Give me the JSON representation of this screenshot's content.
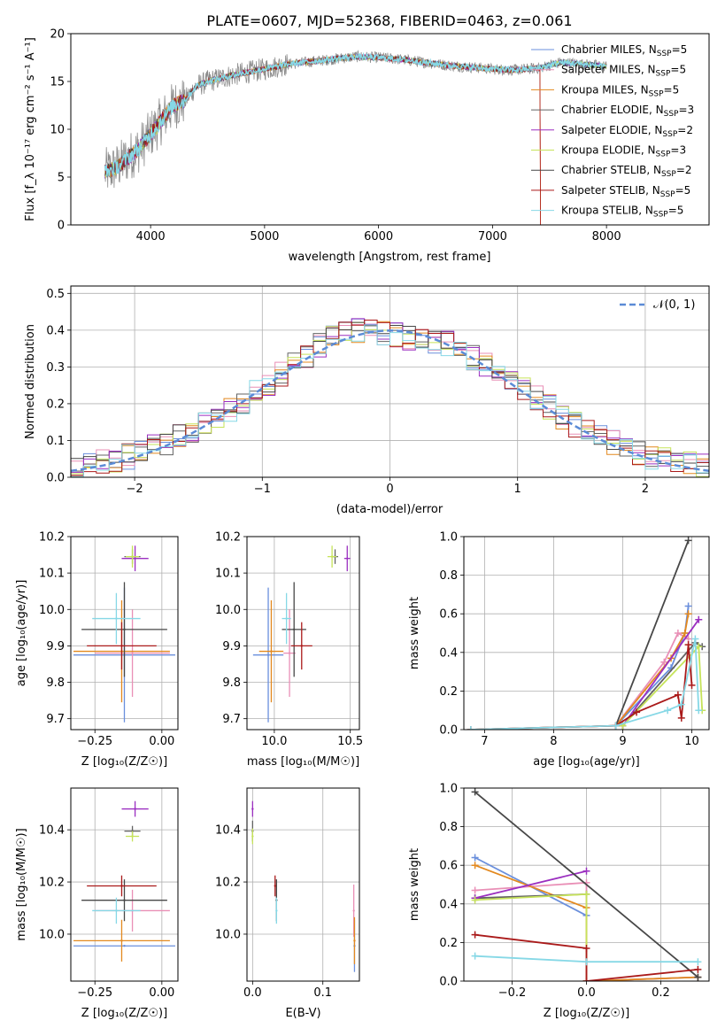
{
  "figure": {
    "title": "PLATE=0607, MJD=52368, FIBERID=0463, z=0.061"
  },
  "models": [
    {
      "imf": "Chabrier",
      "lib": "MILES",
      "n": "5",
      "color": "#6a8fdc"
    },
    {
      "imf": "Salpeter",
      "lib": "MILES",
      "n": "5",
      "color": "#e98fb6"
    },
    {
      "imf": "Kroupa",
      "lib": "MILES",
      "n": "5",
      "color": "#e3891f"
    },
    {
      "imf": "Chabrier",
      "lib": "ELODIE",
      "n": "3",
      "color": "#636363"
    },
    {
      "imf": "Salpeter",
      "lib": "ELODIE",
      "n": "2",
      "color": "#9b2fc0"
    },
    {
      "imf": "Kroupa",
      "lib": "ELODIE",
      "n": "3",
      "color": "#c6e35a"
    },
    {
      "imf": "Chabrier",
      "lib": "STELIB",
      "n": "2",
      "color": "#474747"
    },
    {
      "imf": "Salpeter",
      "lib": "STELIB",
      "n": "5",
      "color": "#aa1a1a"
    },
    {
      "imf": "Kroupa",
      "lib": "STELIB",
      "n": "5",
      "color": "#86d8e6"
    }
  ],
  "chart_data": [
    {
      "id": "spectrum",
      "type": "line",
      "xlabel": "wavelength [Angstrom, rest frame]",
      "ylabel": "Flux [f_λ 10⁻¹⁷ erg cm⁻² s⁻¹ A⁻¹]",
      "xlim": [
        3300,
        8900
      ],
      "ylim": [
        0,
        20
      ],
      "xticks": [
        4000,
        5000,
        6000,
        7000,
        8000
      ],
      "yticks": [
        0,
        5,
        10,
        15,
        20
      ],
      "legend": "right",
      "continuum": {
        "x": [
          3600,
          3700,
          3800,
          3900,
          4000,
          4100,
          4200,
          4300,
          4400,
          4500,
          4700,
          5000,
          5200,
          5500,
          5800,
          6000,
          6200,
          6400,
          6600,
          6800,
          7000,
          7200,
          7400,
          7600,
          7800,
          8000
        ],
        "y": [
          5.5,
          6.0,
          7.0,
          8.0,
          9.5,
          11.0,
          12.5,
          13.0,
          14.5,
          15.0,
          15.6,
          16.3,
          16.8,
          17.2,
          17.6,
          17.5,
          17.3,
          17.0,
          16.7,
          16.5,
          16.3,
          16.2,
          16.4,
          17.0,
          16.8,
          16.6
        ]
      }
    },
    {
      "id": "residuals",
      "type": "line",
      "xlabel": "(data-model)/error",
      "ylabel": "Normed distribution",
      "xlim": [
        -2.5,
        2.5
      ],
      "ylim": [
        0,
        0.52
      ],
      "xticks": [
        -2,
        -1,
        0,
        1,
        2
      ],
      "yticks": [
        0.0,
        0.1,
        0.2,
        0.3,
        0.4,
        0.5
      ],
      "reference": {
        "name": "𝒩(0, 1)"
      },
      "envelope": {
        "x": [
          -2.5,
          -2.0,
          -1.5,
          -1.0,
          -0.5,
          -0.25,
          0,
          0.5,
          1.0,
          1.5,
          2.0,
          2.5
        ],
        "y": [
          0.02,
          0.06,
          0.13,
          0.24,
          0.37,
          0.4,
          0.39,
          0.36,
          0.25,
          0.13,
          0.06,
          0.03
        ]
      }
    },
    {
      "id": "age-vs-Z",
      "type": "scatter",
      "xlabel": "Z [log₁₀(Z/Z☉)]",
      "ylabel": "age [log₁₀(age/yr)]",
      "xlim": [
        -0.34,
        0.06
      ],
      "ylim": [
        9.67,
        10.2
      ],
      "xticks": [
        -0.25,
        0.0
      ],
      "yticks": [
        9.7,
        9.8,
        9.9,
        10.0,
        10.1,
        10.2
      ],
      "points": [
        {
          "x": -0.14,
          "y": 9.875,
          "xerr": 0.19,
          "yerr": 0.185
        },
        {
          "x": -0.11,
          "y": 9.88,
          "xerr": 0.14,
          "yerr": 0.12
        },
        {
          "x": -0.15,
          "y": 9.885,
          "xerr": 0.18,
          "yerr": 0.14
        },
        {
          "x": -0.11,
          "y": 10.145,
          "xerr": 0.03,
          "yerr": 0.02
        },
        {
          "x": -0.1,
          "y": 10.14,
          "xerr": 0.05,
          "yerr": 0.035
        },
        {
          "x": -0.11,
          "y": 10.145,
          "xerr": 0.025,
          "yerr": 0.03
        },
        {
          "x": -0.14,
          "y": 9.945,
          "xerr": 0.16,
          "yerr": 0.13
        },
        {
          "x": -0.15,
          "y": 9.9,
          "xerr": 0.13,
          "yerr": 0.065
        },
        {
          "x": -0.17,
          "y": 9.975,
          "xerr": 0.09,
          "yerr": 0.07
        }
      ]
    },
    {
      "id": "age-vs-mass",
      "type": "scatter",
      "xlabel": "mass [log₁₀(M/M☉)]",
      "ylabel": "",
      "xlim": [
        9.82,
        10.56
      ],
      "ylim": [
        9.67,
        10.2
      ],
      "xticks": [
        10.0,
        10.5
      ],
      "yticks": [
        9.7,
        9.8,
        9.9,
        10.0,
        10.1,
        10.2
      ],
      "points": [
        {
          "x": 9.96,
          "y": 9.875,
          "xerr": 0.1,
          "yerr": 0.185
        },
        {
          "x": 10.1,
          "y": 9.88,
          "xerr": 0.04,
          "yerr": 0.12
        },
        {
          "x": 9.98,
          "y": 9.885,
          "xerr": 0.08,
          "yerr": 0.14
        },
        {
          "x": 10.4,
          "y": 10.145,
          "xerr": 0.02,
          "yerr": 0.02
        },
        {
          "x": 10.48,
          "y": 10.14,
          "xerr": 0.02,
          "yerr": 0.035
        },
        {
          "x": 10.38,
          "y": 10.145,
          "xerr": 0.03,
          "yerr": 0.03
        },
        {
          "x": 10.13,
          "y": 9.945,
          "xerr": 0.08,
          "yerr": 0.13
        },
        {
          "x": 10.18,
          "y": 9.9,
          "xerr": 0.07,
          "yerr": 0.065
        },
        {
          "x": 10.08,
          "y": 9.975,
          "xerr": 0.03,
          "yerr": 0.07
        }
      ]
    },
    {
      "id": "weight-vs-age",
      "type": "line",
      "xlabel": "age [log₁₀(age/yr)]",
      "ylabel": "mass weight",
      "xlim": [
        6.7,
        10.25
      ],
      "ylim": [
        0,
        1.0
      ],
      "xticks": [
        7,
        8,
        9,
        10
      ],
      "yticks": [
        0.0,
        0.2,
        0.4,
        0.6,
        0.8,
        1.0
      ],
      "series": [
        {
          "x": [
            6.8,
            8.9,
            9.7,
            9.9,
            9.95
          ],
          "y": [
            0.0,
            0.02,
            0.32,
            0.5,
            0.64
          ]
        },
        {
          "x": [
            6.8,
            8.9,
            9.6,
            9.8,
            9.95
          ],
          "y": [
            0.0,
            0.02,
            0.35,
            0.5,
            0.47
          ]
        },
        {
          "x": [
            6.8,
            8.9,
            9.7,
            9.9,
            9.95
          ],
          "y": [
            0.0,
            0.02,
            0.37,
            0.5,
            0.6
          ]
        },
        {
          "x": [
            9.0,
            10.05,
            10.15
          ],
          "y": [
            0.02,
            0.45,
            0.43
          ]
        },
        {
          "x": [
            9.0,
            10.1
          ],
          "y": [
            0.02,
            0.57
          ]
        },
        {
          "x": [
            9.0,
            10.1,
            10.15
          ],
          "y": [
            0.02,
            0.43,
            0.1
          ]
        },
        {
          "x": [
            8.9,
            9.95
          ],
          "y": [
            0.02,
            0.98
          ]
        },
        {
          "x": [
            6.8,
            8.9,
            9.2,
            9.8,
            9.85,
            9.95,
            10.0
          ],
          "y": [
            0.0,
            0.02,
            0.09,
            0.18,
            0.06,
            0.44,
            0.23
          ]
        },
        {
          "x": [
            6.8,
            8.9,
            9.65,
            9.85,
            10.05,
            10.1
          ],
          "y": [
            0.0,
            0.02,
            0.1,
            0.13,
            0.47,
            0.1
          ]
        }
      ]
    },
    {
      "id": "mass-vs-Z",
      "type": "scatter",
      "xlabel": "Z [log₁₀(Z/Z☉)]",
      "ylabel": "mass [log₁₀(M/M☉)]",
      "xlim": [
        -0.34,
        0.06
      ],
      "ylim": [
        9.82,
        10.56
      ],
      "xticks": [
        -0.25,
        0.0
      ],
      "yticks": [
        10.0,
        10.2,
        10.4
      ],
      "points": [
        {
          "x": -0.14,
          "y": 9.955,
          "xerr": 0.19,
          "yerr": 0.0
        },
        {
          "x": -0.11,
          "y": 10.09,
          "xerr": 0.14,
          "yerr": 0.08
        },
        {
          "x": -0.15,
          "y": 9.975,
          "xerr": 0.18,
          "yerr": 0.08
        },
        {
          "x": -0.11,
          "y": 10.395,
          "xerr": 0.03,
          "yerr": 0.02
        },
        {
          "x": -0.1,
          "y": 10.48,
          "xerr": 0.05,
          "yerr": 0.03
        },
        {
          "x": -0.11,
          "y": 10.375,
          "xerr": 0.025,
          "yerr": 0.02
        },
        {
          "x": -0.14,
          "y": 10.13,
          "xerr": 0.16,
          "yerr": 0.08
        },
        {
          "x": -0.15,
          "y": 10.185,
          "xerr": 0.13,
          "yerr": 0.04
        },
        {
          "x": -0.17,
          "y": 10.09,
          "xerr": 0.09,
          "yerr": 0.05
        }
      ]
    },
    {
      "id": "mass-vs-ebv",
      "type": "scatter",
      "xlabel": "E(B-V)",
      "ylabel": "",
      "xlim": [
        -0.008,
        0.152
      ],
      "ylim": [
        9.82,
        10.56
      ],
      "xticks": [
        0.0,
        0.1
      ],
      "yticks": [
        10.0,
        10.2,
        10.4
      ],
      "points": [
        {
          "x": 0.145,
          "y": 9.955,
          "xerr": 0.0,
          "yerr": 0.1
        },
        {
          "x": 0.144,
          "y": 10.09,
          "xerr": 0.0,
          "yerr": 0.1
        },
        {
          "x": 0.145,
          "y": 9.975,
          "xerr": 0.0,
          "yerr": 0.09
        },
        {
          "x": 0.0,
          "y": 10.395,
          "xerr": 0.0,
          "yerr": 0.04
        },
        {
          "x": 0.0,
          "y": 10.48,
          "xerr": 0.0,
          "yerr": 0.03
        },
        {
          "x": 0.0,
          "y": 10.375,
          "xerr": 0.0,
          "yerr": 0.03
        },
        {
          "x": 0.034,
          "y": 10.13,
          "xerr": 0.0,
          "yerr": 0.08
        },
        {
          "x": 0.032,
          "y": 10.185,
          "xerr": 0.0,
          "yerr": 0.04
        },
        {
          "x": 0.034,
          "y": 10.09,
          "xerr": 0.0,
          "yerr": 0.05
        }
      ]
    },
    {
      "id": "weight-vs-Z",
      "type": "line",
      "xlabel": "Z [log₁₀(Z/Z☉)]",
      "ylabel": "mass weight",
      "xlim": [
        -0.33,
        0.33
      ],
      "ylim": [
        0,
        1.0
      ],
      "xticks": [
        -0.2,
        0.0,
        0.2
      ],
      "yticks": [
        0.0,
        0.2,
        0.4,
        0.6,
        0.8,
        1.0
      ],
      "series": [
        {
          "x": [
            -0.3,
            0.0,
            0.0,
            0.3
          ],
          "y": [
            0.64,
            0.34,
            0.0,
            0.02
          ]
        },
        {
          "x": [
            -0.3,
            0.0,
            0.0,
            0.3
          ],
          "y": [
            0.47,
            0.51,
            0.0,
            0.02
          ]
        },
        {
          "x": [
            -0.3,
            0.0,
            0.0,
            0.3
          ],
          "y": [
            0.6,
            0.38,
            0.0,
            0.02
          ]
        },
        {
          "x": [
            -0.3,
            0.0
          ],
          "y": [
            0.43,
            0.45
          ]
        },
        {
          "x": [
            -0.3,
            0.0
          ],
          "y": [
            0.43,
            0.57
          ]
        },
        {
          "x": [
            -0.3,
            0.0,
            0.0
          ],
          "y": [
            0.42,
            0.45,
            0.1
          ]
        },
        {
          "x": [
            -0.3,
            0.3
          ],
          "y": [
            0.98,
            0.02
          ]
        },
        {
          "x": [
            -0.3,
            0.0,
            0.0,
            0.3
          ],
          "y": [
            0.24,
            0.17,
            0.0,
            0.06
          ]
        },
        {
          "x": [
            -0.3,
            0.0,
            0.3
          ],
          "y": [
            0.13,
            0.1,
            0.1
          ]
        }
      ]
    }
  ]
}
